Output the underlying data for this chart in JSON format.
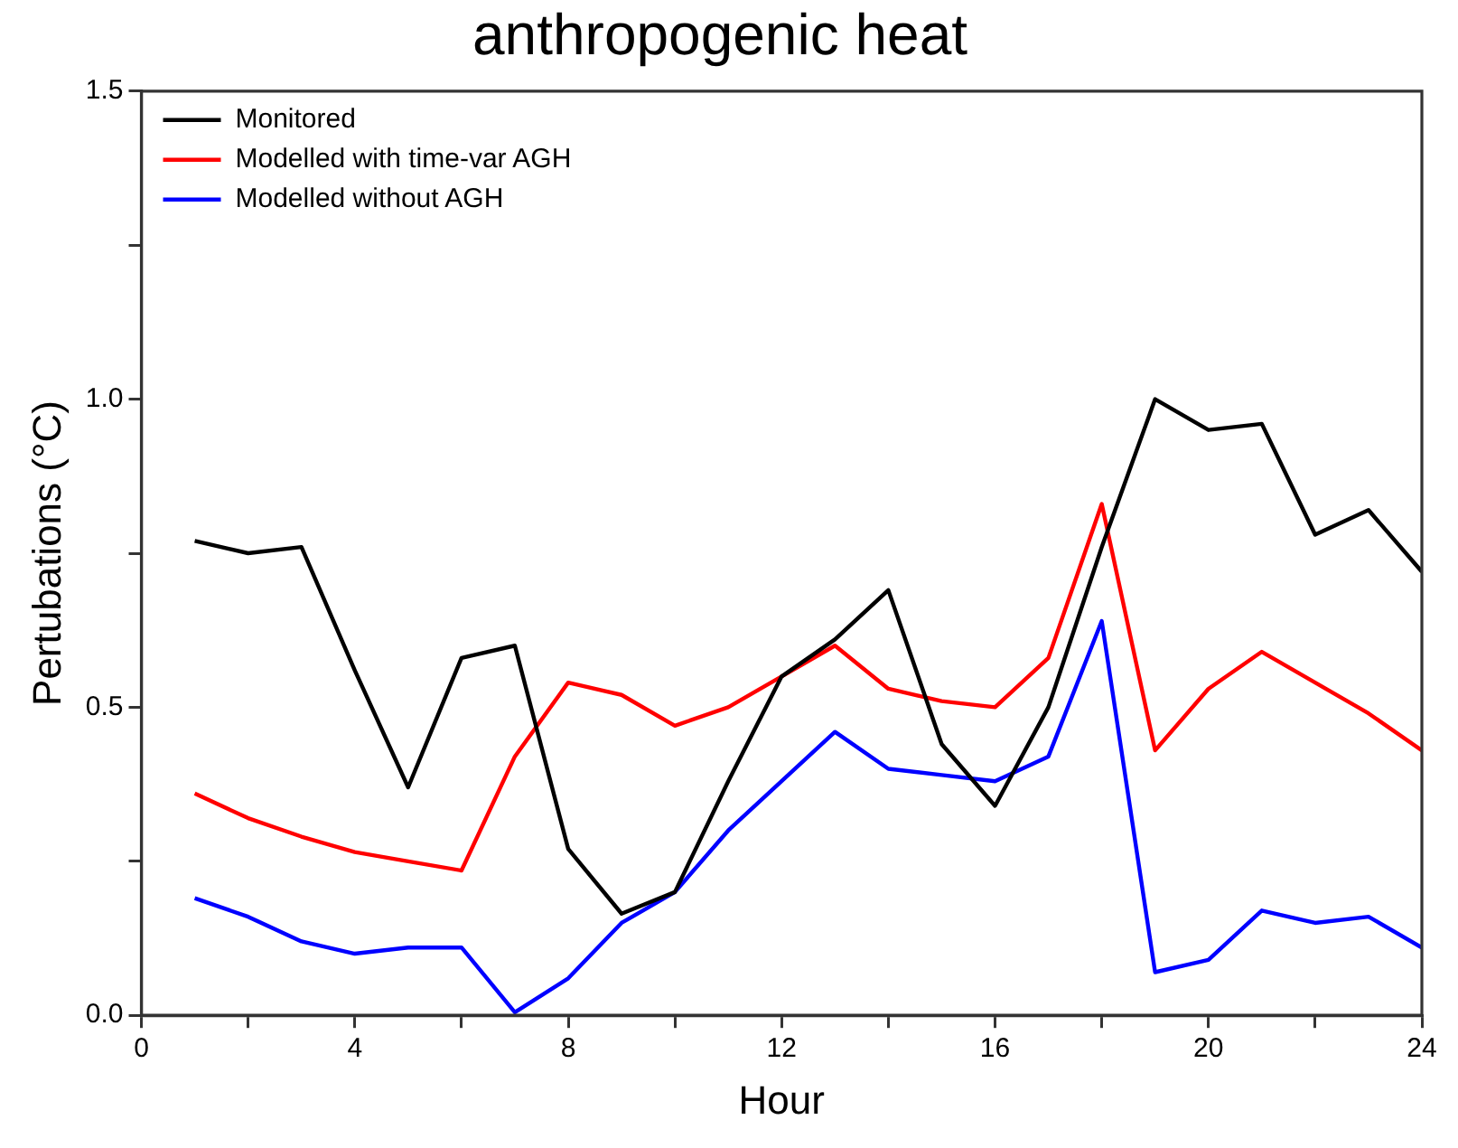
{
  "chart_data": {
    "type": "line",
    "title": "anthropogenic heat",
    "xlabel": "Hour",
    "ylabel": "Pertubations (°C)",
    "x": [
      1,
      2,
      3,
      4,
      5,
      6,
      7,
      8,
      9,
      10,
      11,
      12,
      13,
      14,
      15,
      16,
      17,
      18,
      19,
      20,
      21,
      22,
      23,
      24
    ],
    "series": [
      {
        "name": "Monitored",
        "color": "#000000",
        "values": [
          0.77,
          0.75,
          0.76,
          0.56,
          0.37,
          0.58,
          0.6,
          0.27,
          0.165,
          0.2,
          0.38,
          0.55,
          0.61,
          0.69,
          0.44,
          0.34,
          0.5,
          0.76,
          1.0,
          0.95,
          0.96,
          0.78,
          0.82,
          0.72
        ]
      },
      {
        "name": "Modelled with time-var AGH",
        "color": "#ff0000",
        "values": [
          0.36,
          0.32,
          0.29,
          0.265,
          0.25,
          0.235,
          0.42,
          0.54,
          0.52,
          0.47,
          0.5,
          0.55,
          0.6,
          0.53,
          0.51,
          0.5,
          0.58,
          0.83,
          0.43,
          0.53,
          0.59,
          0.54,
          0.49,
          0.43
        ]
      },
      {
        "name": "Modelled without AGH",
        "color": "#0000ff",
        "values": [
          0.19,
          0.16,
          0.12,
          0.1,
          0.11,
          0.11,
          0.005,
          0.06,
          0.15,
          0.2,
          0.3,
          0.38,
          0.46,
          0.4,
          0.39,
          0.38,
          0.42,
          0.64,
          0.07,
          0.09,
          0.17,
          0.15,
          0.16,
          0.11
        ]
      }
    ],
    "xlim": [
      0,
      24
    ],
    "xticks": [
      0,
      {
        "value": 2,
        "label": null
      },
      4,
      {
        "value": 6,
        "label": null
      },
      8,
      {
        "value": 10,
        "label": null
      },
      12,
      {
        "value": 14,
        "label": null
      },
      16,
      {
        "value": 18,
        "label": null
      },
      20,
      {
        "value": 22,
        "label": null
      },
      24
    ],
    "ylim": [
      0,
      1.5
    ],
    "yticks": [
      {
        "value": 0,
        "label": "0.0"
      },
      {
        "value": 0.25,
        "label": null
      },
      {
        "value": 0.5,
        "label": "0.5"
      },
      {
        "value": 0.75,
        "label": null
      },
      {
        "value": 1,
        "label": "1.0"
      },
      {
        "value": 1.25,
        "label": null
      },
      {
        "value": 1.5,
        "label": "1.5"
      }
    ],
    "legend": "top left",
    "line_style": "solid"
  }
}
